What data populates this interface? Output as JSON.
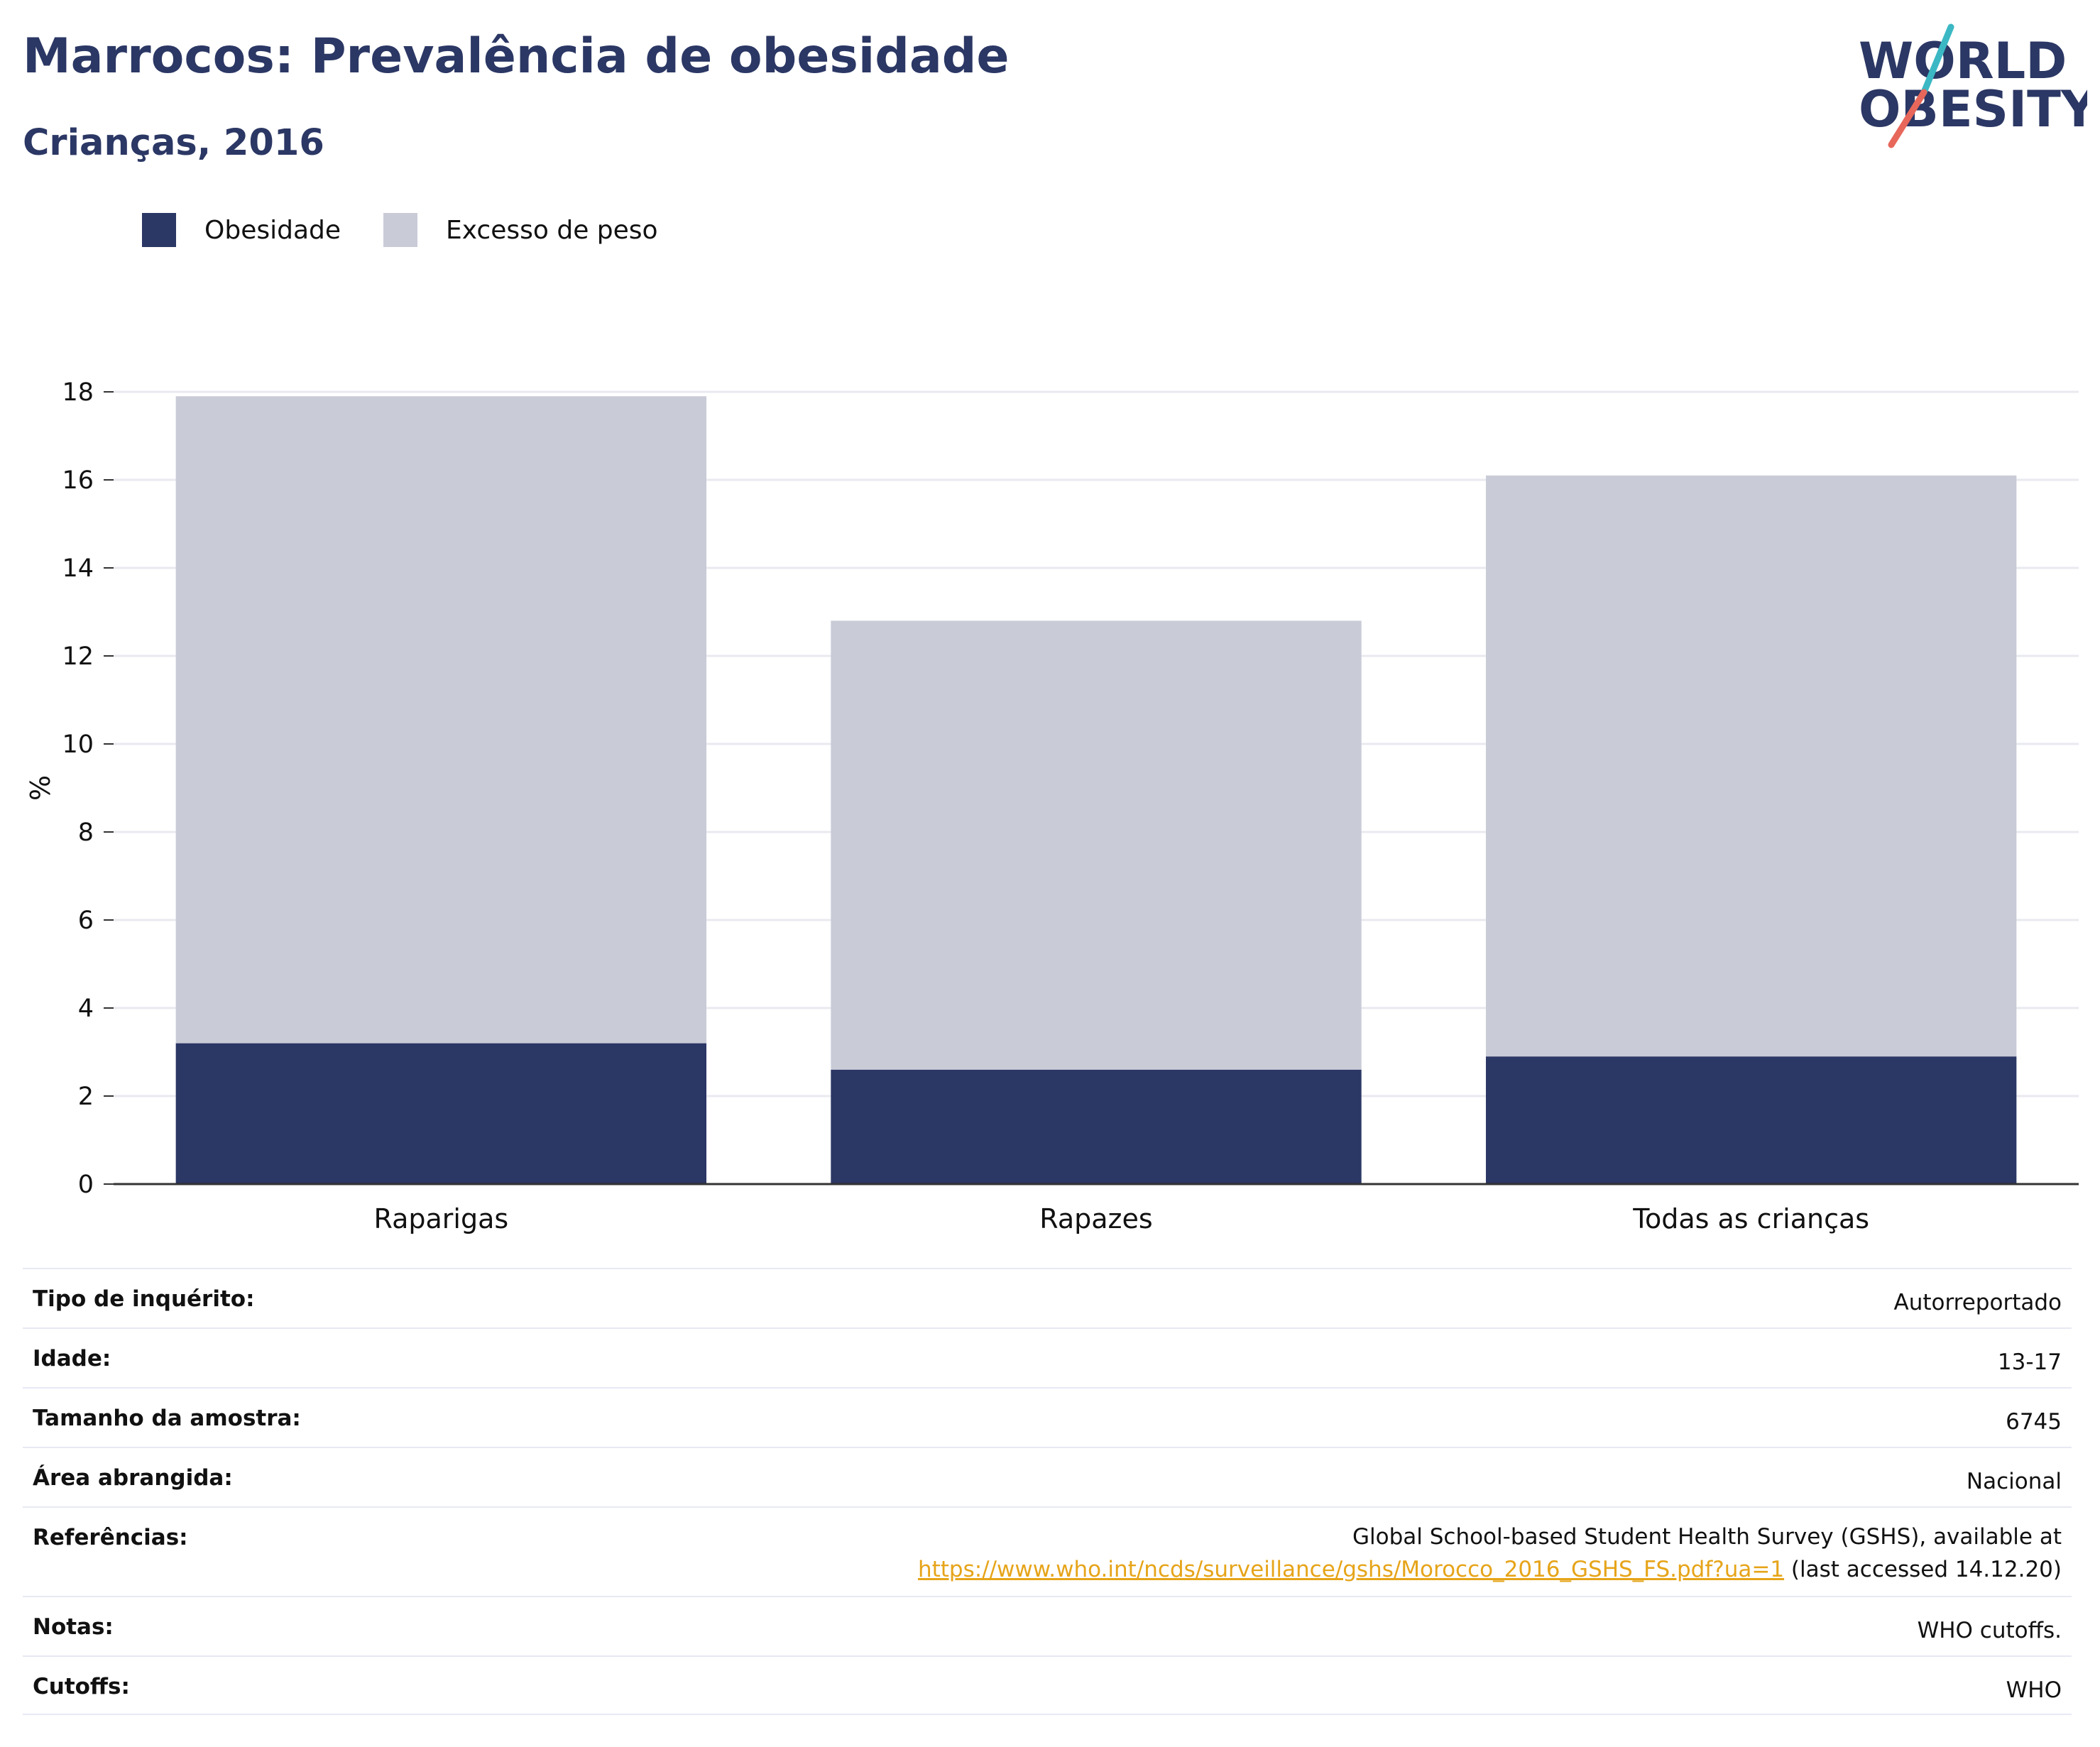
{
  "header": {
    "title": "Marrocos: Prevalência de obesidade",
    "subtitle": "Crianças, 2016"
  },
  "logo": {
    "line1": "WORLD",
    "line2": "OBESITY",
    "colors": {
      "text": "#2b3764",
      "slash_top": "#3bb8c4",
      "slash_bottom": "#e8675b"
    }
  },
  "legend": {
    "items": [
      {
        "label": "Obesidade",
        "color": "#2b3764"
      },
      {
        "label": "Excesso de peso",
        "color": "#c9cbd7"
      }
    ]
  },
  "chart_data": {
    "type": "bar",
    "stacked": true,
    "categories": [
      "Raparigas",
      "Rapazes",
      "Todas as crianças"
    ],
    "series": [
      {
        "name": "Obesidade",
        "color": "#2b3764",
        "values": [
          3.2,
          2.6,
          2.9
        ]
      },
      {
        "name": "Excesso de peso",
        "color": "#c9cbd7",
        "values": [
          14.7,
          10.2,
          13.2
        ]
      }
    ],
    "ylabel": "%",
    "xlabel": "",
    "ylim": [
      0,
      18
    ],
    "yticks": [
      0,
      2,
      4,
      6,
      8,
      10,
      12,
      14,
      16,
      18
    ],
    "grid": true,
    "legend_position": "top-left"
  },
  "details": {
    "rows": [
      {
        "label": "Tipo de inquérito:",
        "value": "Autorreportado"
      },
      {
        "label": "Idade:",
        "value": "13-17"
      },
      {
        "label": "Tamanho da amostra:",
        "value": "6745"
      },
      {
        "label": "Área abrangida:",
        "value": "Nacional"
      },
      {
        "label": "Referências:",
        "value": "Global School-based Student Health Survey (GSHS), available at",
        "link": "https://www.who.int/ncds/surveillance/gshs/Morocco_2016_GSHS_FS.pdf?ua=1",
        "suffix": " (last accessed 14.12.20)"
      },
      {
        "label": "Notas:",
        "value": "WHO cutoffs."
      },
      {
        "label": "Cutoffs:",
        "value": "WHO"
      }
    ]
  }
}
